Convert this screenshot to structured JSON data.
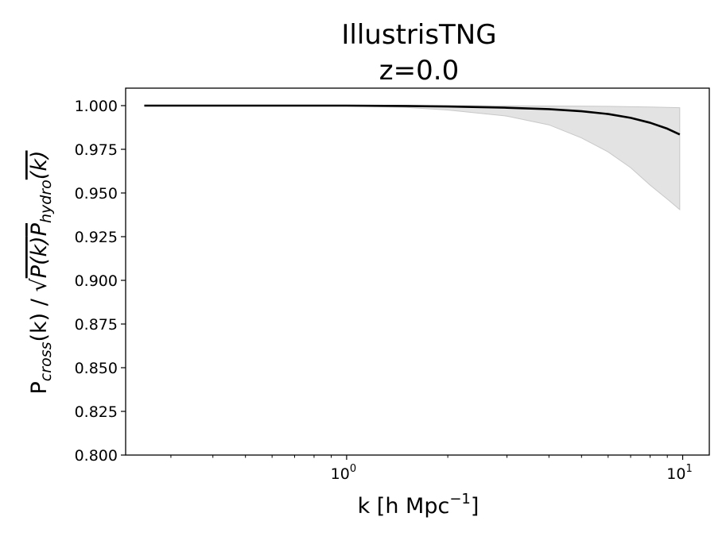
{
  "chart_data": {
    "type": "line",
    "title_line1": "IllustrisTNG",
    "title_line2": "z=0.0",
    "xlabel": {
      "prefix": "k [h Mpc",
      "sup": "−1",
      "suffix": "]"
    },
    "ylabel": {
      "p": "P",
      "sub_cross": "cross",
      "mid": "(k) / ",
      "inner_p": "P",
      "inner_k": "(k)",
      "sub_hydro": "hydro"
    },
    "x_scale": "log",
    "xlim": [
      0.22,
      12
    ],
    "ylim": [
      0.8,
      1.01
    ],
    "x_major_ticks": [
      {
        "value": 1,
        "base": "10",
        "exp": "0"
      },
      {
        "value": 10,
        "base": "10",
        "exp": "1"
      }
    ],
    "x_minor_ticks": [
      0.3,
      0.4,
      0.5,
      0.6,
      0.7,
      0.8,
      0.9,
      2,
      3,
      4,
      5,
      6,
      7,
      8,
      9
    ],
    "y_ticks": [
      {
        "value": 0.8,
        "label": "0.800"
      },
      {
        "value": 0.825,
        "label": "0.825"
      },
      {
        "value": 0.85,
        "label": "0.850"
      },
      {
        "value": 0.875,
        "label": "0.875"
      },
      {
        "value": 0.9,
        "label": "0.900"
      },
      {
        "value": 0.925,
        "label": "0.925"
      },
      {
        "value": 0.95,
        "label": "0.950"
      },
      {
        "value": 0.975,
        "label": "0.975"
      },
      {
        "value": 1.0,
        "label": "1.000"
      }
    ],
    "grid": false,
    "legend": "none",
    "series": [
      {
        "color": "#000000",
        "x": [
          0.25,
          0.5,
          1.0,
          1.5,
          2.0,
          3.0,
          4.0,
          5.0,
          6.0,
          7.0,
          8.0,
          9.0,
          9.8
        ],
        "y": [
          1.0,
          1.0,
          1.0,
          0.9998,
          0.9995,
          0.9988,
          0.998,
          0.9968,
          0.9952,
          0.993,
          0.9902,
          0.9868,
          0.9835
        ]
      }
    ],
    "band": {
      "color": "#d9d9d9",
      "x": [
        0.25,
        0.5,
        1.0,
        1.5,
        2.0,
        3.0,
        4.0,
        5.0,
        6.0,
        7.0,
        8.0,
        9.0,
        9.8
      ],
      "upper": [
        1.0,
        1.0,
        1.0,
        1.0,
        1.0,
        0.9999,
        0.9998,
        0.9997,
        0.9996,
        0.9994,
        0.9992,
        0.999,
        0.9988
      ],
      "lower": [
        1.0,
        1.0,
        0.9998,
        0.999,
        0.9975,
        0.994,
        0.989,
        0.9815,
        0.9735,
        0.9645,
        0.9545,
        0.9465,
        0.9405
      ]
    }
  }
}
